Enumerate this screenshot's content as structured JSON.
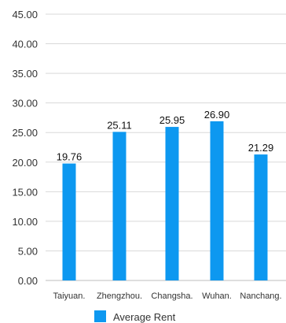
{
  "chart_data": {
    "type": "bar",
    "categories": [
      "Taiyuan.",
      "Zhengzhou.",
      "Changsha.",
      "Wuhan.",
      "Nanchang."
    ],
    "series": [
      {
        "name": "Average Rent",
        "values": [
          19.76,
          25.11,
          25.95,
          26.9,
          21.29
        ],
        "labels": [
          "19.76",
          "25.11",
          "25.95",
          "26.90",
          "21.29"
        ],
        "color": "#0d98f0"
      }
    ],
    "y_ticks": [
      "0.00",
      "5.00",
      "10.00",
      "15.00",
      "20.00",
      "25.00",
      "30.00",
      "35.00",
      "40.00",
      "45.00"
    ],
    "ylim": [
      0,
      45
    ],
    "grid": true,
    "legend_position": "bottom-left"
  }
}
